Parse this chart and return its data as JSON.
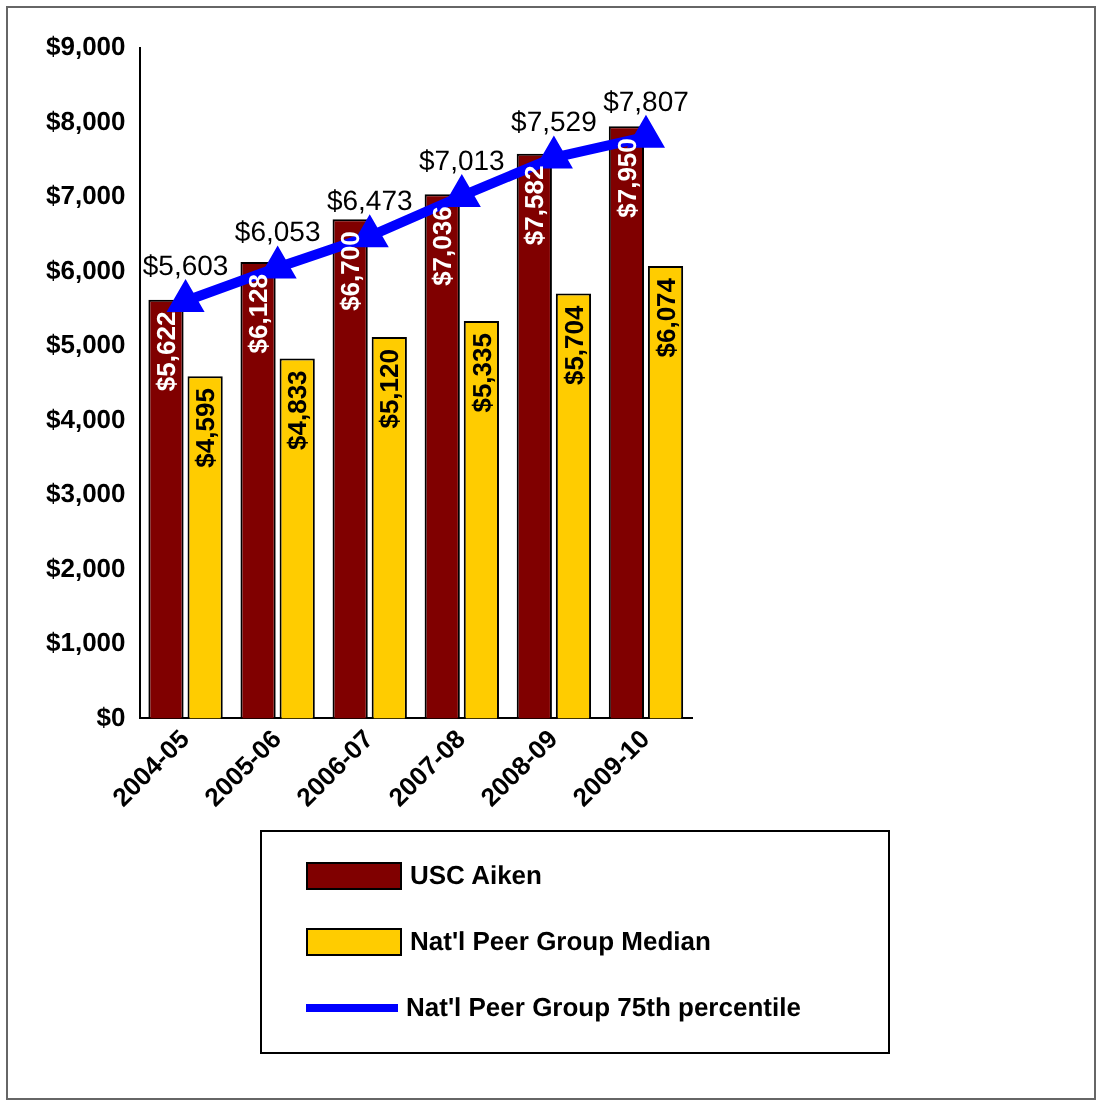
{
  "chart_data": {
    "type": "bar",
    "categories": [
      "2004-05",
      "2005-06",
      "2006-07",
      "2007-08",
      "2008-09",
      "2009-10"
    ],
    "series": [
      {
        "name": "USC Aiken",
        "color": "#800000",
        "values": [
          5622,
          6128,
          6700,
          7036,
          7582,
          7950
        ],
        "value_labels": [
          "$5,622",
          "$6,128",
          "$6,700",
          "$7,036",
          "$7,582",
          "$7,950"
        ]
      },
      {
        "name": "Nat'l Peer Group Median",
        "color": "#ffcc00",
        "values": [
          4595,
          4833,
          5120,
          5335,
          5704,
          6074
        ],
        "value_labels": [
          "$4,595",
          "$4,833",
          "$5,120",
          "$5,335",
          "$5,704",
          "$6,074"
        ]
      },
      {
        "name": "Nat'l Peer Group 75th percentile",
        "type": "line",
        "color": "#0000ff",
        "values": [
          5603,
          6053,
          6473,
          7013,
          7529,
          7807
        ],
        "value_labels": [
          "$5,603",
          "$6,053",
          "$6,473",
          "$7,013",
          "$7,529",
          "$7,807"
        ]
      }
    ],
    "ylim": [
      0,
      9000
    ],
    "yticks": [
      {
        "value": 0,
        "label": "$0"
      },
      {
        "value": 1000,
        "label": "$1,000"
      },
      {
        "value": 2000,
        "label": "$2,000"
      },
      {
        "value": 3000,
        "label": "$3,000"
      },
      {
        "value": 4000,
        "label": "$4,000"
      },
      {
        "value": 5000,
        "label": "$5,000"
      },
      {
        "value": 6000,
        "label": "$6,000"
      },
      {
        "value": 7000,
        "label": "$7,000"
      },
      {
        "value": 8000,
        "label": "$8,000"
      },
      {
        "value": 9000,
        "label": "$9,000"
      }
    ],
    "grid": false,
    "legend": "bottom",
    "marker": "triangle"
  }
}
